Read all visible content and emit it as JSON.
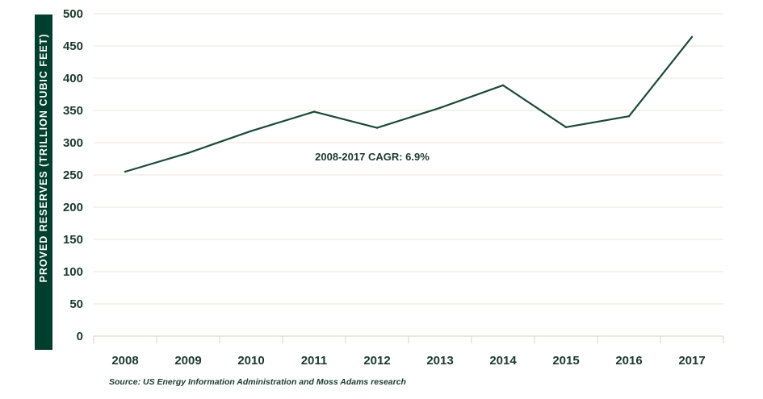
{
  "chart_data": {
    "type": "line",
    "ylabel": "PROVED RESERVES (TRILLION CUBIC FEET)",
    "xlabel": "",
    "categories": [
      "2008",
      "2009",
      "2010",
      "2011",
      "2012",
      "2013",
      "2014",
      "2015",
      "2016",
      "2017"
    ],
    "series": [
      {
        "values": [
          255,
          284,
          318,
          348,
          323,
          354,
          389,
          324,
          341,
          464
        ]
      }
    ],
    "ylim": [
      0,
      500
    ],
    "yticks": [
      "0",
      "50",
      "100",
      "150",
      "200",
      "250",
      "300",
      "350",
      "400",
      "450",
      "500"
    ],
    "annotation": "2008-2017 CAGR: 6.9%",
    "source": "Source: US Energy Information Administration and Moss Adams research",
    "grid": "horizontal",
    "colors": {
      "line": "#1c4a35",
      "label_band": "#003f2d",
      "grid": "#e8e4d4",
      "text": "#1c3a2e"
    }
  }
}
